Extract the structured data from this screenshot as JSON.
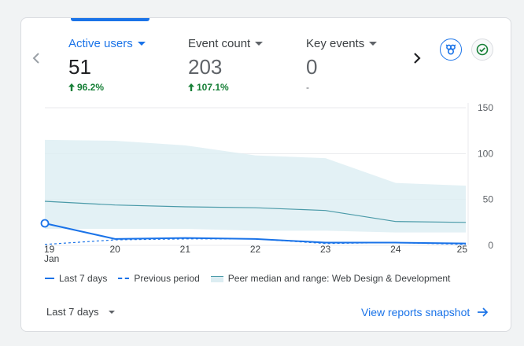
{
  "colors": {
    "accent": "#1a73e8",
    "positive": "#188038",
    "peer_line": "#4a9aa8",
    "peer_band": "#dcedf2"
  },
  "metrics": [
    {
      "label": "Active users",
      "value": "51",
      "change": "96.2%",
      "direction": "up"
    },
    {
      "label": "Event count",
      "value": "203",
      "change": "107.1%",
      "direction": "up"
    },
    {
      "label": "Key events",
      "value": "0",
      "change": "-",
      "direction": "none"
    }
  ],
  "icons": {
    "prev": "chevron-left-icon",
    "next": "chevron-right-icon",
    "insights": "insights-icon",
    "check": "check-circle-icon"
  },
  "chart_data": {
    "type": "line",
    "title": "Active users",
    "x": [
      "19",
      "20",
      "21",
      "22",
      "23",
      "24",
      "25"
    ],
    "x_sublabel": "Jan",
    "y_ticks": [
      "0",
      "50",
      "100",
      "150"
    ],
    "ylim": [
      0,
      150
    ],
    "grid": true,
    "legend_position": "bottom",
    "series": [
      {
        "name": "Last 7 days",
        "style": "solid",
        "values": [
          24,
          7,
          8,
          7,
          3,
          3,
          2
        ]
      },
      {
        "name": "Previous period",
        "style": "dashed",
        "values": [
          1,
          6,
          7,
          7,
          2,
          3,
          1
        ]
      },
      {
        "name": "Peer median",
        "style": "thin",
        "values": [
          48,
          44,
          42,
          41,
          38,
          26,
          25
        ]
      }
    ],
    "band": {
      "name": "Peer range",
      "upper": [
        115,
        114,
        109,
        98,
        95,
        68,
        65
      ],
      "lower": [
        18,
        18,
        18,
        16,
        16,
        14,
        14
      ]
    }
  },
  "legend": {
    "last7": "Last 7 days",
    "previous": "Previous period",
    "peer": "Peer median and range: Web Design & Development"
  },
  "footer": {
    "period_label": "Last 7 days",
    "view_link": "View reports snapshot"
  }
}
